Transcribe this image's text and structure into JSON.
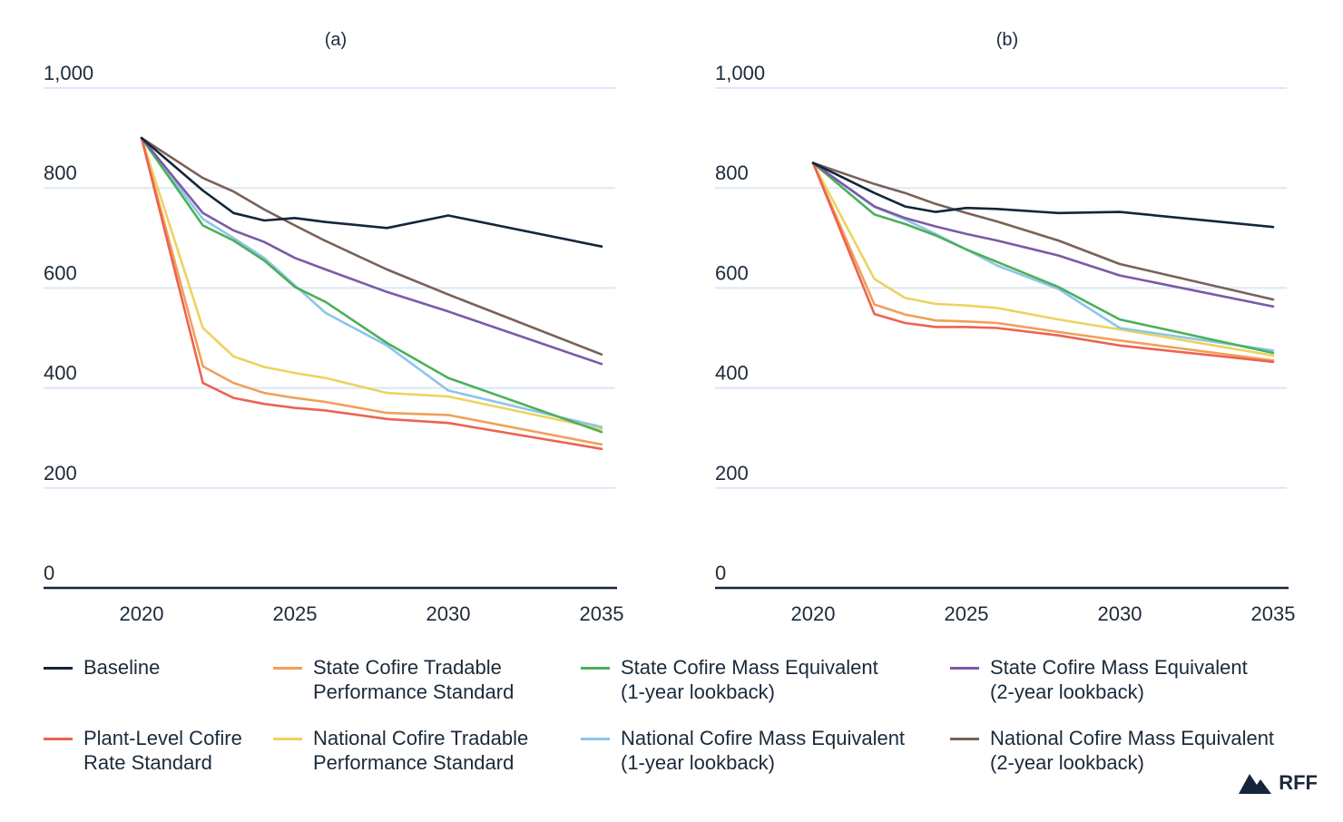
{
  "chart_data": [
    {
      "type": "line",
      "title": "(a)",
      "x": [
        2020,
        2022,
        2023,
        2024,
        2025,
        2026,
        2028,
        2030,
        2035
      ],
      "xticks": [
        "2020",
        "2025",
        "2030",
        "2035"
      ],
      "xlim": [
        2016,
        2035
      ],
      "ylim": [
        0,
        1000
      ],
      "yticks": [
        "0",
        "200",
        "400",
        "600",
        "800",
        "1,000"
      ],
      "grid": true,
      "series": [
        {
          "name": "Baseline",
          "values": [
            900,
            795,
            750,
            735,
            740,
            732,
            720,
            745,
            683
          ]
        },
        {
          "name": "State Cofire Tradable Performance Standard",
          "values": [
            900,
            443,
            410,
            390,
            380,
            372,
            350,
            346,
            287
          ]
        },
        {
          "name": "State Cofire Mass Equivalent (1-year lookback)",
          "values": [
            900,
            725,
            695,
            655,
            602,
            572,
            490,
            420,
            312
          ]
        },
        {
          "name": "State Cofire Mass Equivalent (2-year lookback)",
          "values": [
            900,
            750,
            715,
            692,
            660,
            637,
            592,
            553,
            448
          ]
        },
        {
          "name": "Plant-Level Cofire Rate Standard",
          "values": [
            900,
            410,
            380,
            368,
            360,
            355,
            338,
            330,
            278
          ]
        },
        {
          "name": "National Cofire Tradable Performance Standard",
          "values": [
            900,
            520,
            463,
            442,
            430,
            420,
            390,
            383,
            318
          ]
        },
        {
          "name": "National Cofire Mass Equivalent (1-year lookback)",
          "values": [
            900,
            738,
            700,
            660,
            605,
            550,
            485,
            395,
            322
          ]
        },
        {
          "name": "National Cofire Mass Equivalent (2-year lookback)",
          "values": [
            900,
            820,
            793,
            757,
            725,
            694,
            637,
            587,
            467
          ]
        }
      ]
    },
    {
      "type": "line",
      "title": "(b)",
      "x": [
        2020,
        2022,
        2023,
        2024,
        2025,
        2026,
        2028,
        2030,
        2035
      ],
      "xticks": [
        "2020",
        "2025",
        "2030",
        "2035"
      ],
      "xlim": [
        2016,
        2035
      ],
      "ylim": [
        0,
        1000
      ],
      "yticks": [
        "0",
        "200",
        "400",
        "600",
        "800",
        "1,000"
      ],
      "grid": true,
      "series": [
        {
          "name": "Baseline",
          "values": [
            850,
            790,
            763,
            752,
            760,
            758,
            750,
            752,
            722
          ]
        },
        {
          "name": "State Cofire Tradable Performance Standard",
          "values": [
            850,
            567,
            547,
            535,
            533,
            530,
            512,
            495,
            455
          ]
        },
        {
          "name": "State Cofire Mass Equivalent (1-year lookback)",
          "values": [
            850,
            747,
            728,
            705,
            677,
            652,
            602,
            537,
            470
          ]
        },
        {
          "name": "State Cofire Mass Equivalent (2-year lookback)",
          "values": [
            850,
            763,
            740,
            723,
            708,
            695,
            665,
            625,
            563
          ]
        },
        {
          "name": "Plant-Level Cofire Rate Standard",
          "values": [
            850,
            548,
            530,
            522,
            522,
            520,
            505,
            485,
            452
          ]
        },
        {
          "name": "National Cofire Tradable Performance Standard",
          "values": [
            850,
            618,
            580,
            568,
            565,
            560,
            537,
            517,
            465
          ]
        },
        {
          "name": "National Cofire Mass Equivalent (1-year lookback)",
          "values": [
            850,
            762,
            737,
            708,
            677,
            645,
            598,
            520,
            475
          ]
        },
        {
          "name": "National Cofire Mass Equivalent (2-year lookback)",
          "values": [
            850,
            808,
            790,
            768,
            750,
            733,
            695,
            648,
            577
          ]
        }
      ]
    }
  ],
  "colors": {
    "Baseline": "#13263a",
    "State Cofire Tradable Performance Standard": "#f0a05a",
    "State Cofire Mass Equivalent (1-year lookback)": "#4bb05a",
    "State Cofire Mass Equivalent (2-year lookback)": "#7b5aa6",
    "Plant-Level Cofire Rate Standard": "#ec6352",
    "National Cofire Tradable Performance Standard": "#ecd35e",
    "National Cofire Mass Equivalent (1-year lookback)": "#8ec5e9",
    "National Cofire Mass Equivalent (2-year lookback)": "#7a6158",
    "grid": "#dbe8f6",
    "axis": "#13263a"
  },
  "legend": [
    {
      "key": "Baseline",
      "text": "Baseline"
    },
    {
      "key": "State Cofire Tradable Performance Standard",
      "text": "State Cofire Tradable\nPerformance Standard"
    },
    {
      "key": "State Cofire Mass Equivalent (1-year lookback)",
      "text": "State Cofire Mass Equivalent\n(1-year lookback)"
    },
    {
      "key": "State Cofire Mass Equivalent (2-year lookback)",
      "text": "State Cofire Mass Equivalent\n(2-year lookback)"
    },
    {
      "key": "Plant-Level Cofire Rate Standard",
      "text": "Plant-Level Cofire\nRate Standard"
    },
    {
      "key": "National Cofire Tradable Performance Standard",
      "text": "National Cofire Tradable\nPerformance Standard"
    },
    {
      "key": "National Cofire Mass Equivalent (1-year lookback)",
      "text": "National Cofire Mass Equivalent\n(1-year lookback)"
    },
    {
      "key": "National Cofire Mass Equivalent (2-year lookback)",
      "text": "National Cofire Mass Equivalent\n(2-year lookback)"
    }
  ],
  "brand": {
    "text": "RFF",
    "icon": "mountain-logo-icon"
  }
}
